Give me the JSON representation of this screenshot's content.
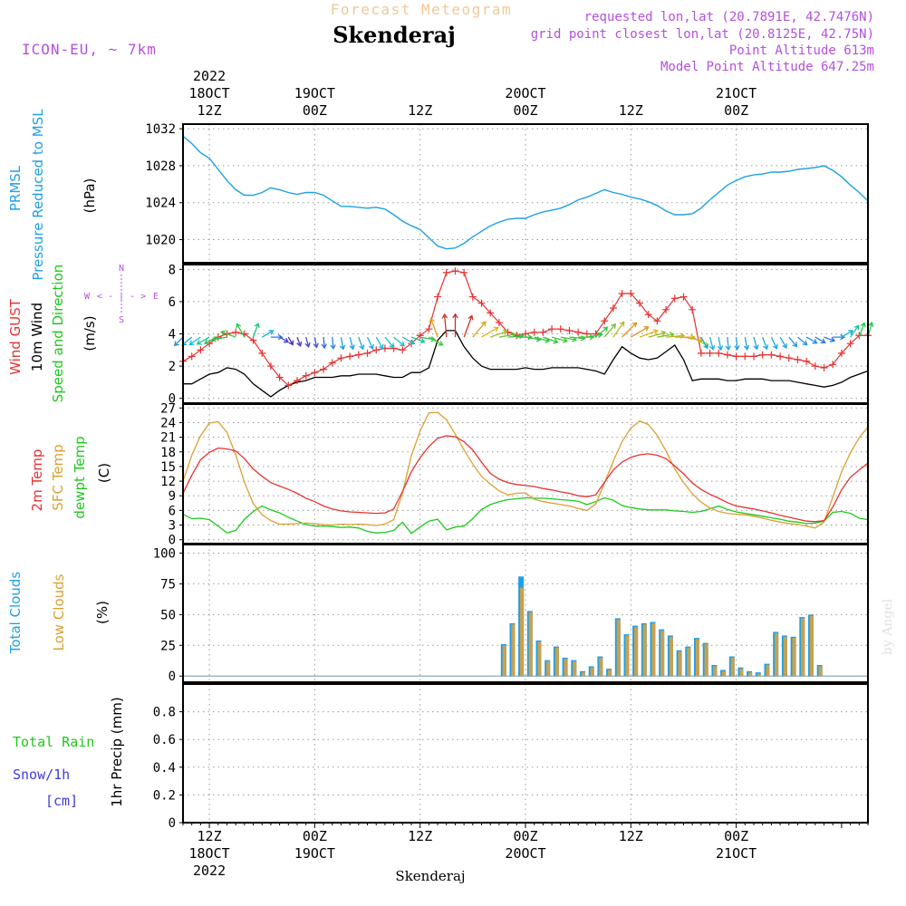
{
  "header": {
    "title_small": "Forecast Meteogram",
    "location": "Skenderaj",
    "model": "ICON-EU, ~ 7km",
    "requested": "requested lon,lat (20.7891E, 42.7476N)",
    "grid_point": "grid point closest lon,lat (20.8125E, 42.75N)",
    "point_altitude": "Point Altitude 613m",
    "model_altitude": "Model Point Altitude 647.25m",
    "footer_location": "Skenderaj",
    "watermark": "by Angel"
  },
  "colors": {
    "pressure": "#1ea0e6",
    "gust": "#e63232",
    "wind": "#000000",
    "temp": "#e63232",
    "sfc": "#dca032",
    "dewpt": "#1ec81e",
    "total_clouds": "#1ea0e6",
    "low_clouds": "#c8a050",
    "rain": "#1ec81e",
    "snow": "#3c3cdc",
    "meta": "#b450dc",
    "title_small": "#f0c896"
  },
  "time_axis": {
    "n_hours": 78,
    "top_labels": [
      {
        "hour": 3,
        "lines": [
          "2022",
          "18OCT",
          "12Z"
        ]
      },
      {
        "hour": 15,
        "lines": [
          "19OCT",
          "00Z"
        ]
      },
      {
        "hour": 27,
        "lines": [
          "12Z"
        ]
      },
      {
        "hour": 39,
        "lines": [
          "20OCT",
          "00Z"
        ]
      },
      {
        "hour": 51,
        "lines": [
          "12Z"
        ]
      },
      {
        "hour": 63,
        "lines": [
          "21OCT",
          "00Z"
        ]
      }
    ],
    "bottom_labels": [
      {
        "hour": 3,
        "lines": [
          "12Z",
          "18OCT",
          "2022"
        ]
      },
      {
        "hour": 15,
        "lines": [
          "00Z",
          "19OCT"
        ]
      },
      {
        "hour": 27,
        "lines": [
          "12Z"
        ]
      },
      {
        "hour": 39,
        "lines": [
          "00Z",
          "20OCT"
        ]
      },
      {
        "hour": 51,
        "lines": [
          "12Z"
        ]
      },
      {
        "hour": 63,
        "lines": [
          "00Z",
          "21OCT"
        ]
      }
    ]
  },
  "panels": {
    "pressure": {
      "labels": [
        "PRMSL",
        "Pressure Reduced to MSL"
      ],
      "unit": "(hPa)"
    },
    "wind": {
      "labels": [
        "Wind GUST",
        "10m Wind",
        "Speed and Direction"
      ],
      "unit": "(m/s)",
      "compass": {
        "n": "N",
        "s": "S",
        "w": "W",
        "e": "E",
        "row": "< - | - >"
      }
    },
    "temp": {
      "labels": [
        "2m Temp",
        "SFC Temp",
        "dewpt Temp"
      ],
      "unit": "(C)"
    },
    "clouds": {
      "labels": [
        "Total Clouds",
        "Low Clouds"
      ],
      "unit": "(%)"
    },
    "precip": {
      "labels": [
        "Total  Rain",
        "Snow/1h",
        "[cm]"
      ],
      "unit": "1hr Precip (mm)"
    }
  },
  "chart_data": [
    {
      "type": "line",
      "title": "PRMSL Pressure Reduced to MSL",
      "ylabel": "(hPa)",
      "ylim": [
        1017.5,
        1032.5
      ],
      "yticks": [
        1020,
        1024,
        1028,
        1032
      ],
      "series": [
        {
          "name": "PRMSL",
          "values": [
            1031.2,
            1030.4,
            1029.4,
            1028.8,
            1027.6,
            1026.4,
            1025.4,
            1024.8,
            1024.8,
            1025.1,
            1025.6,
            1025.4,
            1025.1,
            1024.9,
            1025.1,
            1025.1,
            1024.8,
            1024.2,
            1023.6,
            1023.6,
            1023.5,
            1023.4,
            1023.5,
            1023.3,
            1022.7,
            1022.0,
            1021.5,
            1021.1,
            1020.2,
            1019.3,
            1019.0,
            1019.1,
            1019.6,
            1020.3,
            1020.9,
            1021.5,
            1021.9,
            1022.2,
            1022.3,
            1022.3,
            1022.7,
            1023.0,
            1023.2,
            1023.4,
            1023.8,
            1024.3,
            1024.6,
            1025.0,
            1025.4,
            1025.1,
            1024.9,
            1024.6,
            1024.4,
            1024.1,
            1023.7,
            1023.1,
            1022.7,
            1022.7,
            1022.8,
            1023.4,
            1024.3,
            1025.1,
            1025.9,
            1026.4,
            1026.8,
            1027.0,
            1027.1,
            1027.3,
            1027.3,
            1027.4,
            1027.6,
            1027.7,
            1027.8,
            1028.0,
            1027.5,
            1026.8,
            1025.9,
            1025.1,
            1024.2
          ]
        }
      ]
    },
    {
      "type": "line",
      "title": "Wind GUST / 10m Wind Speed and Direction",
      "ylabel": "(m/s)",
      "ylim": [
        -0.3,
        8.3
      ],
      "yticks": [
        0,
        2,
        4,
        6,
        8
      ],
      "series": [
        {
          "name": "Wind GUST",
          "values": [
            2.3,
            2.6,
            3.0,
            3.4,
            3.8,
            4.0,
            4.1,
            4.0,
            3.6,
            2.8,
            2.0,
            1.3,
            0.8,
            1.1,
            1.4,
            1.6,
            1.8,
            2.2,
            2.5,
            2.6,
            2.7,
            2.8,
            3.0,
            3.1,
            3.1,
            3.0,
            3.4,
            3.9,
            4.3,
            6.3,
            7.8,
            7.9,
            7.8,
            6.3,
            5.9,
            5.3,
            4.7,
            4.1,
            3.9,
            4.0,
            4.1,
            4.1,
            4.3,
            4.3,
            4.2,
            4.1,
            4.0,
            4.0,
            4.8,
            5.6,
            6.5,
            6.5,
            5.9,
            5.2,
            4.8,
            5.5,
            6.2,
            6.3,
            5.5,
            2.8,
            2.8,
            2.8,
            2.7,
            2.6,
            2.6,
            2.6,
            2.7,
            2.7,
            2.6,
            2.5,
            2.4,
            2.3,
            2.0,
            1.9,
            2.1,
            2.8,
            3.4,
            3.9,
            3.9
          ]
        },
        {
          "name": "10m Wind",
          "values": [
            0.9,
            0.9,
            1.2,
            1.5,
            1.6,
            1.9,
            1.8,
            1.5,
            0.9,
            0.5,
            0.1,
            0.5,
            0.8,
            1.0,
            1.1,
            1.3,
            1.3,
            1.3,
            1.4,
            1.4,
            1.5,
            1.5,
            1.5,
            1.4,
            1.3,
            1.3,
            1.6,
            1.6,
            1.9,
            3.6,
            4.2,
            4.2,
            3.2,
            2.5,
            2.0,
            1.8,
            1.8,
            1.8,
            1.8,
            1.9,
            1.8,
            1.8,
            1.9,
            1.9,
            1.9,
            1.9,
            1.8,
            1.7,
            1.5,
            2.4,
            3.2,
            2.8,
            2.5,
            2.4,
            2.5,
            2.9,
            3.3,
            2.4,
            1.1,
            1.2,
            1.2,
            1.2,
            1.1,
            1.1,
            1.2,
            1.2,
            1.2,
            1.1,
            1.1,
            1.1,
            1.0,
            0.9,
            0.8,
            0.7,
            0.8,
            1.0,
            1.3,
            1.5,
            1.7
          ]
        }
      ]
    },
    {
      "type": "line",
      "title": "2m Temp / SFC Temp / dewpt Temp",
      "ylabel": "(C)",
      "ylim": [
        -0.8,
        27.8
      ],
      "yticks": [
        0,
        3,
        6,
        9,
        12,
        15,
        18,
        21,
        24,
        27
      ],
      "series": [
        {
          "name": "2m Temp",
          "values": [
            9.5,
            13.2,
            16.4,
            17.9,
            18.8,
            18.6,
            18.2,
            16.6,
            14.5,
            13.0,
            11.7,
            11.0,
            10.3,
            9.5,
            8.5,
            7.8,
            6.9,
            6.3,
            5.9,
            5.7,
            5.6,
            5.5,
            5.4,
            5.5,
            6.3,
            9.9,
            13.9,
            16.8,
            19.1,
            20.8,
            21.3,
            21.1,
            20.1,
            18.4,
            15.9,
            13.6,
            12.4,
            11.7,
            11.3,
            11.1,
            10.9,
            10.5,
            10.2,
            9.8,
            9.5,
            9.0,
            8.8,
            9.2,
            11.8,
            14.3,
            15.9,
            16.9,
            17.4,
            17.6,
            17.3,
            16.6,
            15.1,
            13.5,
            11.6,
            10.3,
            9.3,
            8.5,
            7.6,
            6.9,
            6.6,
            6.3,
            5.9,
            5.5,
            5.0,
            4.6,
            4.2,
            3.8,
            3.7,
            3.9,
            6.7,
            10.2,
            12.8,
            14.3,
            15.7
          ]
        },
        {
          "name": "SFC Temp",
          "values": [
            12.0,
            17.3,
            21.3,
            23.9,
            24.2,
            22.0,
            17.4,
            11.8,
            7.4,
            5.1,
            3.9,
            3.2,
            3.2,
            3.3,
            3.4,
            3.3,
            3.1,
            3.0,
            3.2,
            3.1,
            3.2,
            3.1,
            2.9,
            3.2,
            4.1,
            9.6,
            17.2,
            22.3,
            26.0,
            26.1,
            24.6,
            21.6,
            18.4,
            15.5,
            13.0,
            11.4,
            10.0,
            9.2,
            9.5,
            9.6,
            8.3,
            7.8,
            7.5,
            7.2,
            6.9,
            6.4,
            6.0,
            7.3,
            11.6,
            16.1,
            20.1,
            22.9,
            24.3,
            23.6,
            21.4,
            18.2,
            14.5,
            11.7,
            9.4,
            7.7,
            6.5,
            5.8,
            5.4,
            5.2,
            5.1,
            4.8,
            4.4,
            4.0,
            3.6,
            3.3,
            3.1,
            2.8,
            2.4,
            3.6,
            8.7,
            13.9,
            17.8,
            20.9,
            23.1
          ]
        },
        {
          "name": "dewpt Temp",
          "values": [
            5.2,
            4.3,
            4.4,
            4.1,
            2.8,
            1.4,
            1.9,
            4.2,
            5.8,
            6.9,
            6.1,
            5.5,
            4.6,
            3.8,
            3.1,
            2.8,
            2.8,
            2.7,
            2.5,
            2.6,
            2.4,
            1.7,
            1.4,
            1.5,
            1.9,
            3.6,
            1.3,
            2.6,
            3.8,
            4.2,
            2.0,
            2.6,
            2.8,
            4.3,
            6.2,
            7.2,
            7.8,
            8.2,
            8.4,
            8.6,
            8.5,
            8.5,
            8.4,
            8.2,
            8.1,
            7.9,
            7.2,
            7.8,
            8.6,
            8.1,
            7.0,
            6.6,
            6.3,
            6.1,
            6.1,
            6.1,
            5.9,
            5.8,
            5.6,
            5.8,
            6.3,
            6.9,
            6.2,
            5.7,
            5.4,
            5.1,
            4.8,
            4.5,
            4.2,
            3.8,
            3.6,
            3.3,
            3.4,
            3.8,
            5.6,
            5.8,
            5.4,
            4.4,
            4.1
          ]
        }
      ]
    },
    {
      "type": "bar",
      "title": "Total Clouds / Low Clouds",
      "ylabel": "(%)",
      "ylim": [
        -5,
        107
      ],
      "yticks": [
        0,
        25,
        50,
        75,
        100
      ],
      "series": [
        {
          "name": "Total Clouds",
          "values": [
            0,
            0,
            0,
            0,
            0,
            0,
            0,
            0,
            0,
            0,
            0,
            0,
            0,
            0,
            0,
            0,
            0,
            0,
            0,
            0,
            0,
            0,
            0,
            0,
            0,
            0,
            0,
            0,
            0,
            0,
            0,
            0,
            0,
            0,
            0,
            0,
            26,
            43,
            81,
            53,
            29,
            13,
            24,
            15,
            13,
            4,
            8,
            16,
            6,
            47,
            34,
            41,
            43,
            44,
            38,
            33,
            21,
            24,
            31,
            27,
            9,
            5,
            16,
            7,
            4,
            3,
            10,
            36,
            33,
            32,
            48,
            50,
            9,
            0,
            0,
            0,
            0,
            0
          ]
        },
        {
          "name": "Low Clouds",
          "values": [
            0,
            0,
            0,
            0,
            0,
            0,
            0,
            0,
            0,
            0,
            0,
            0,
            0,
            0,
            0,
            0,
            0,
            0,
            0,
            0,
            0,
            0,
            0,
            0,
            0,
            0,
            0,
            0,
            0,
            0,
            0,
            0,
            0,
            0,
            0,
            0,
            25,
            42,
            72,
            52,
            28,
            12,
            23,
            14,
            12,
            3,
            7,
            15,
            5,
            46,
            33,
            40,
            42,
            43,
            37,
            32,
            20,
            23,
            30,
            26,
            8,
            4,
            15,
            6,
            3,
            2,
            9,
            35,
            32,
            31,
            47,
            49,
            8,
            0,
            0,
            0,
            0,
            0
          ]
        }
      ]
    },
    {
      "type": "bar",
      "title": "1hr Precip",
      "ylabel": "1hr Precip (mm)",
      "ylim": [
        0,
        1.0
      ],
      "yticks": [
        0,
        0.2,
        0.4,
        0.6,
        0.8
      ],
      "series": [
        {
          "name": "Total Rain",
          "values": []
        },
        {
          "name": "Snow/1h",
          "values": []
        }
      ]
    }
  ],
  "wind_directions": [
    {
      "hour": 0,
      "dir": 45
    },
    {
      "hour": 1,
      "dir": 50
    },
    {
      "hour": 2,
      "dir": 55
    },
    {
      "hour": 3,
      "dir": 60
    },
    {
      "hour": 4,
      "dir": 65
    },
    {
      "hour": 5,
      "dir": 80
    },
    {
      "hour": 6,
      "dir": 110
    },
    {
      "hour": 7,
      "dir": 150
    },
    {
      "hour": 8,
      "dir": 200
    },
    {
      "hour": 9,
      "dir": 240
    },
    {
      "hour": 10,
      "dir": 270
    },
    {
      "hour": 11,
      "dir": 300
    },
    {
      "hour": 12,
      "dir": 330
    },
    {
      "hour": 13,
      "dir": 340
    },
    {
      "hour": 14,
      "dir": 345
    },
    {
      "hour": 15,
      "dir": 350
    },
    {
      "hour": 16,
      "dir": 355
    },
    {
      "hour": 17,
      "dir": 355
    },
    {
      "hour": 18,
      "dir": 350
    },
    {
      "hour": 19,
      "dir": 345
    },
    {
      "hour": 20,
      "dir": 340
    },
    {
      "hour": 21,
      "dir": 335
    },
    {
      "hour": 22,
      "dir": 330
    },
    {
      "hour": 23,
      "dir": 320
    },
    {
      "hour": 24,
      "dir": 310
    },
    {
      "hour": 25,
      "dir": 300
    },
    {
      "hour": 26,
      "dir": 290
    },
    {
      "hour": 27,
      "dir": 280
    },
    {
      "hour": 28,
      "dir": 300
    },
    {
      "hour": 29,
      "dir": 160
    },
    {
      "hour": 30,
      "dir": 175
    },
    {
      "hour": 31,
      "dir": 180
    },
    {
      "hour": 32,
      "dir": 200
    },
    {
      "hour": 33,
      "dir": 220
    },
    {
      "hour": 34,
      "dir": 240
    },
    {
      "hour": 35,
      "dir": 250
    },
    {
      "hour": 36,
      "dir": 260
    },
    {
      "hour": 37,
      "dir": 265
    },
    {
      "hour": 38,
      "dir": 270
    },
    {
      "hour": 39,
      "dir": 280
    },
    {
      "hour": 40,
      "dir": 285
    },
    {
      "hour": 41,
      "dir": 290
    },
    {
      "hour": 42,
      "dir": 285
    },
    {
      "hour": 43,
      "dir": 280
    },
    {
      "hour": 44,
      "dir": 275
    },
    {
      "hour": 45,
      "dir": 270
    },
    {
      "hour": 46,
      "dir": 260
    },
    {
      "hour": 47,
      "dir": 230
    },
    {
      "hour": 48,
      "dir": 220
    },
    {
      "hour": 49,
      "dir": 215
    },
    {
      "hour": 50,
      "dir": 225
    },
    {
      "hour": 51,
      "dir": 240
    },
    {
      "hour": 52,
      "dir": 250
    },
    {
      "hour": 53,
      "dir": 255
    },
    {
      "hour": 54,
      "dir": 260
    },
    {
      "hour": 55,
      "dir": 265
    },
    {
      "hour": 56,
      "dir": 270
    },
    {
      "hour": 57,
      "dir": 280
    },
    {
      "hour": 58,
      "dir": 300
    },
    {
      "hour": 59,
      "dir": 330
    },
    {
      "hour": 60,
      "dir": 345
    },
    {
      "hour": 61,
      "dir": 350
    },
    {
      "hour": 62,
      "dir": 355
    },
    {
      "hour": 63,
      "dir": 355
    },
    {
      "hour": 64,
      "dir": 350
    },
    {
      "hour": 65,
      "dir": 345
    },
    {
      "hour": 66,
      "dir": 340
    },
    {
      "hour": 67,
      "dir": 335
    },
    {
      "hour": 68,
      "dir": 330
    },
    {
      "hour": 69,
      "dir": 320
    },
    {
      "hour": 70,
      "dir": 310
    },
    {
      "hour": 71,
      "dir": 300
    },
    {
      "hour": 72,
      "dir": 300
    },
    {
      "hour": 73,
      "dir": 290
    },
    {
      "hour": 74,
      "dir": 270
    },
    {
      "hour": 75,
      "dir": 240
    },
    {
      "hour": 76,
      "dir": 215
    },
    {
      "hour": 77,
      "dir": 200
    },
    {
      "hour": 78,
      "dir": 195
    }
  ]
}
